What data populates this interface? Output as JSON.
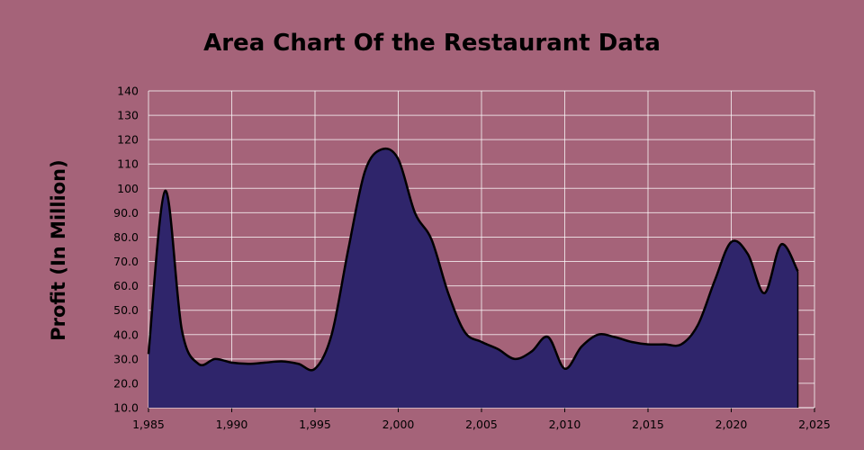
{
  "chart_data": {
    "type": "area",
    "title": "Area Chart Of the Restaurant Data",
    "xlabel": "",
    "ylabel": "Profit (In Million)",
    "xlim": [
      1985,
      2025
    ],
    "ylim": [
      10,
      140
    ],
    "grid": true,
    "x_ticks": [
      "1,985",
      "1,990",
      "1,995",
      "2,000",
      "2,005",
      "2,010",
      "2,015",
      "2,020",
      "2,025"
    ],
    "y_ticks": [
      "10.0",
      "20.0",
      "30.0",
      "40.0",
      "50.0",
      "60.0",
      "70.0",
      "80.0",
      "90.0",
      "100",
      "110",
      "120",
      "130",
      "140"
    ],
    "series": [
      {
        "x": [
          1985,
          1986,
          1987,
          1988,
          1989,
          1990,
          1991,
          1992,
          1993,
          1994,
          1995,
          1996,
          1997,
          1998,
          1999,
          2000,
          2001,
          2002,
          2003,
          2004,
          2005,
          2006,
          2007,
          2008,
          2009,
          2010,
          2011,
          2012,
          2013,
          2014,
          2015,
          2016,
          2017,
          2018,
          2019,
          2020,
          2021,
          2022,
          2023,
          2024
        ],
        "values": [
          32,
          99,
          42,
          28,
          30,
          28.5,
          28,
          28.5,
          29,
          28,
          26,
          40,
          75,
          107,
          116,
          112,
          90,
          79,
          57,
          41,
          37,
          34,
          30,
          33,
          39,
          26,
          35,
          40,
          39,
          37,
          36,
          36,
          36,
          44,
          62,
          78,
          73,
          57,
          77,
          66
        ]
      }
    ],
    "colors": {
      "fill": "#2f256b",
      "line": "#000000",
      "grid": "#ffffff",
      "background": "#a56379"
    }
  }
}
